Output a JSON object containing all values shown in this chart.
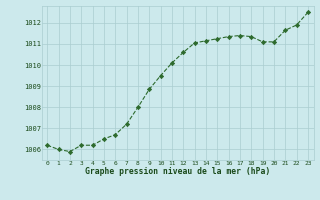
{
  "x": [
    0,
    1,
    2,
    3,
    4,
    5,
    6,
    7,
    8,
    9,
    10,
    11,
    12,
    13,
    14,
    15,
    16,
    17,
    18,
    19,
    20,
    21,
    22,
    23
  ],
  "y": [
    1006.2,
    1006.0,
    1005.9,
    1006.2,
    1006.2,
    1006.5,
    1006.7,
    1007.2,
    1008.0,
    1008.85,
    1009.5,
    1010.1,
    1010.6,
    1011.05,
    1011.15,
    1011.25,
    1011.35,
    1011.4,
    1011.35,
    1011.1,
    1011.1,
    1011.65,
    1011.9,
    1012.5
  ],
  "line_color": "#2d6a2d",
  "marker": "D",
  "marker_size": 2.2,
  "background_color": "#cce9ec",
  "grid_color": "#aacdd0",
  "xlabel": "Graphe pression niveau de la mer (hPa)",
  "xlabel_color": "#1a4a1a",
  "tick_color": "#1a4a1a",
  "ylim": [
    1005.5,
    1012.8
  ],
  "xlim": [
    -0.5,
    23.5
  ],
  "yticks": [
    1006,
    1007,
    1008,
    1009,
    1010,
    1011,
    1012
  ],
  "xticks": [
    0,
    1,
    2,
    3,
    4,
    5,
    6,
    7,
    8,
    9,
    10,
    11,
    12,
    13,
    14,
    15,
    16,
    17,
    18,
    19,
    20,
    21,
    22,
    23
  ],
  "figsize": [
    3.2,
    2.0
  ],
  "dpi": 100
}
